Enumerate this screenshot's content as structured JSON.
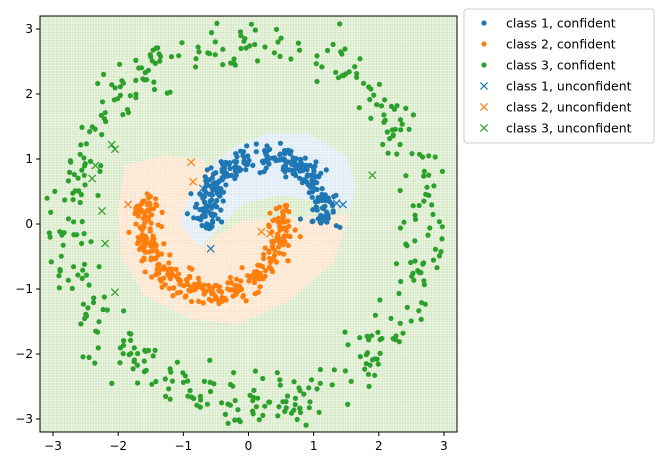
{
  "chart_data": {
    "type": "scatter",
    "title": "",
    "xlabel": "",
    "ylabel": "",
    "xlim": [
      -3.2,
      3.2
    ],
    "ylim": [
      -3.2,
      3.2
    ],
    "xticks": [
      -3,
      -2,
      -1,
      0,
      1,
      2,
      3
    ],
    "yticks": [
      -3,
      -2,
      -1,
      0,
      1,
      2,
      3
    ],
    "xtick_labels": [
      "−3",
      "−2",
      "−1",
      "0",
      "1",
      "2",
      "3"
    ],
    "ytick_labels": [
      "−3",
      "−2",
      "−1",
      "0",
      "1",
      "2",
      "3"
    ],
    "grid": true,
    "legend_position": "outside right, top",
    "background_regions": [
      {
        "class": "class 3",
        "color": "#d6e9c6",
        "description": "everywhere outside inner regions"
      },
      {
        "class": "class 1",
        "color": "#dceaf5",
        "approx_polygon": [
          [
            -1.05,
            0.1
          ],
          [
            -0.9,
            0.45
          ],
          [
            -0.6,
            0.85
          ],
          [
            -0.2,
            1.2
          ],
          [
            0.3,
            1.4
          ],
          [
            0.9,
            1.4
          ],
          [
            1.5,
            1.05
          ],
          [
            1.65,
            0.6
          ],
          [
            1.55,
            0.2
          ],
          [
            1.0,
            0.35
          ],
          [
            0.5,
            0.45
          ],
          [
            -0.1,
            0.3
          ],
          [
            -0.5,
            -0.1
          ],
          [
            -0.75,
            -0.35
          ],
          [
            -1.0,
            -0.2
          ]
        ]
      },
      {
        "class": "class 2",
        "color": "#fde2c8",
        "approx_polygon": [
          [
            -1.9,
            0.9
          ],
          [
            -1.3,
            1.05
          ],
          [
            -0.7,
            1.0
          ],
          [
            -0.55,
            0.75
          ],
          [
            -0.95,
            0.35
          ],
          [
            -1.05,
            0.0
          ],
          [
            -0.75,
            -0.35
          ],
          [
            -0.1,
            0.05
          ],
          [
            0.55,
            0.1
          ],
          [
            1.55,
            0.15
          ],
          [
            1.3,
            -0.6
          ],
          [
            0.6,
            -1.2
          ],
          [
            -0.2,
            -1.55
          ],
          [
            -0.9,
            -1.45
          ],
          [
            -1.6,
            -1.1
          ],
          [
            -1.95,
            -0.5
          ],
          [
            -2.0,
            0.2
          ]
        ]
      }
    ],
    "series": [
      {
        "name": "class 1, confident",
        "color": "#1f77b4",
        "marker": "dot",
        "count": 300,
        "shape": "upper moon arc",
        "center": [
          0.25,
          0.15
        ],
        "radius": 0.9,
        "angle_deg": [
          -10,
          195
        ],
        "spread": 0.1
      },
      {
        "name": "class 2, confident",
        "color": "#ff7f0e",
        "marker": "dot",
        "count": 320,
        "shape": "lower moon arc",
        "center": [
          -0.55,
          0.0
        ],
        "radius": 1.05,
        "angle_deg": [
          -15,
          205
        ],
        "flip": true,
        "spread": 0.1
      },
      {
        "name": "class 3, confident",
        "color": "#2ca02c",
        "marker": "dot",
        "count": 430,
        "shape": "ring",
        "center": [
          0,
          0
        ],
        "radius": 2.75,
        "spread": 0.2
      },
      {
        "name": "class 1, unconfident",
        "color": "#1f77b4",
        "marker": "x",
        "points": [
          [
            -0.7,
            0.55
          ],
          [
            -0.55,
            0.62
          ],
          [
            -0.58,
            -0.38
          ],
          [
            1.45,
            0.3
          ],
          [
            1.35,
            0.32
          ]
        ]
      },
      {
        "name": "class 2, unconfident",
        "color": "#ff7f0e",
        "marker": "x",
        "points": [
          [
            -0.88,
            0.95
          ],
          [
            -0.85,
            0.65
          ],
          [
            -1.85,
            0.3
          ],
          [
            0.2,
            -0.12
          ],
          [
            0.33,
            -0.15
          ]
        ]
      },
      {
        "name": "class 3, unconfident",
        "color": "#2ca02c",
        "marker": "x",
        "points": [
          [
            -2.1,
            1.22
          ],
          [
            -2.05,
            1.15
          ],
          [
            -2.4,
            0.7
          ],
          [
            -2.35,
            0.9
          ],
          [
            -2.25,
            0.2
          ],
          [
            -2.2,
            -0.3
          ],
          [
            -2.05,
            -1.05
          ],
          [
            1.9,
            0.75
          ]
        ]
      }
    ]
  }
}
